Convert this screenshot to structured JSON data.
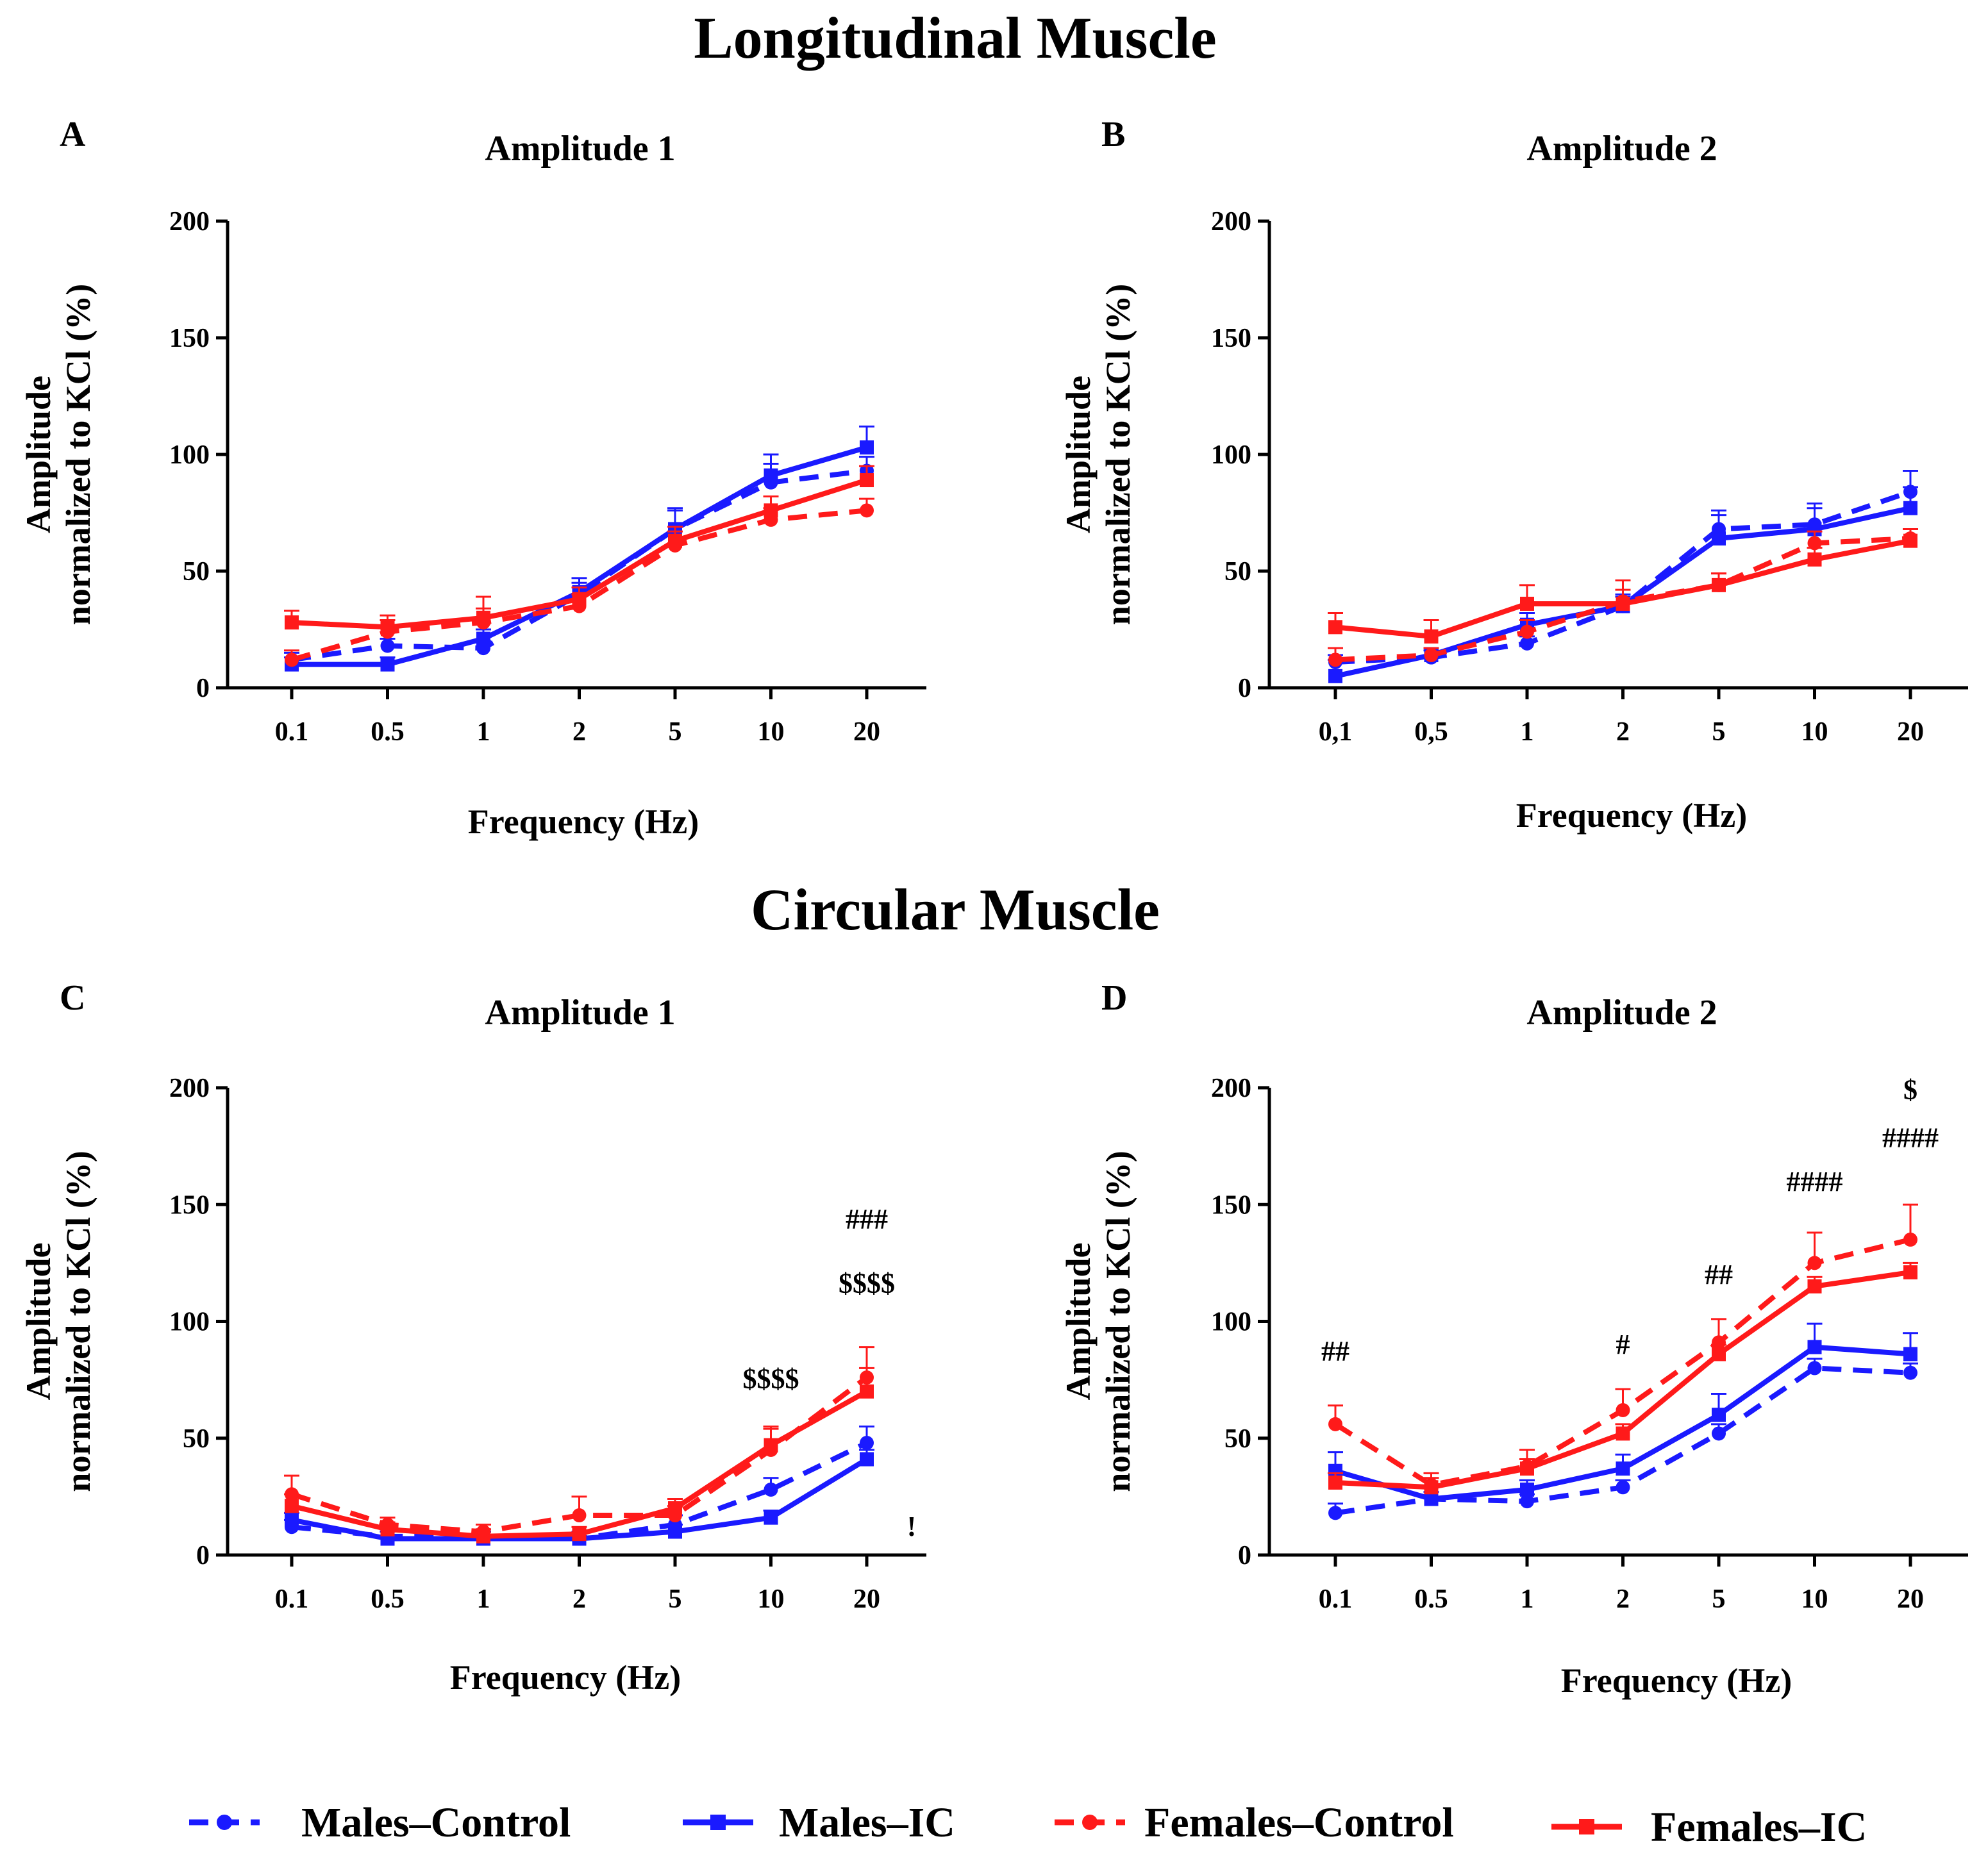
{
  "figure": {
    "section_titles": [
      "Longitudinal Muscle",
      "Circular Muscle"
    ],
    "colors": {
      "blue": "#1a1aff",
      "red": "#ff1a1a",
      "axis": "#000000"
    },
    "legend": [
      {
        "label": "Males–Control",
        "color": "#1a1aff",
        "style": "dashed",
        "marker": "circle"
      },
      {
        "label": "Males–IC",
        "color": "#1a1aff",
        "style": "solid",
        "marker": "square"
      },
      {
        "label": "Females–Control",
        "color": "#ff1a1a",
        "style": "dashed",
        "marker": "circle"
      },
      {
        "label": "Females–IC",
        "color": "#ff1a1a",
        "style": "solid",
        "marker": "square"
      }
    ]
  },
  "chart_data": [
    {
      "panel": "A",
      "section": "Longitudinal Muscle",
      "type": "line",
      "title": "Amplitude 1",
      "xlabel": "Frequency (Hz)",
      "ylabel": [
        "Amplitude",
        "normalized to KCl (%)"
      ],
      "categories": [
        "0.1",
        "0.5",
        "1",
        "2",
        "5",
        "10",
        "20"
      ],
      "ylim": [
        0,
        200
      ],
      "yticks": [
        0,
        50,
        100,
        150,
        200
      ],
      "series": [
        {
          "name": "Males–Control",
          "values": [
            12,
            18,
            17,
            40,
            68,
            88,
            93
          ],
          "errors": [
            3,
            3,
            3,
            5,
            8,
            8,
            6
          ]
        },
        {
          "name": "Males–IC",
          "values": [
            10,
            10,
            21,
            41,
            68,
            91,
            103
          ],
          "errors": [
            3,
            3,
            4,
            6,
            9,
            9,
            9
          ]
        },
        {
          "name": "Females–Control",
          "values": [
            12,
            24,
            28,
            35,
            61,
            72,
            76
          ],
          "errors": [
            4,
            5,
            6,
            5,
            6,
            5,
            5
          ]
        },
        {
          "name": "Females–IC",
          "values": [
            28,
            26,
            30,
            38,
            63,
            76,
            89
          ],
          "errors": [
            5,
            5,
            9,
            5,
            6,
            6,
            6
          ]
        }
      ],
      "annotations": []
    },
    {
      "panel": "B",
      "section": "Longitudinal Muscle",
      "type": "line",
      "title": "Amplitude 2",
      "xlabel": "Frequency (Hz)",
      "ylabel": [
        "Amplitude",
        "normalized to KCl (%)"
      ],
      "categories": [
        "0,1",
        "0,5",
        "1",
        "2",
        "5",
        "10",
        "20"
      ],
      "ylim": [
        0,
        200
      ],
      "yticks": [
        0,
        50,
        100,
        150,
        200
      ],
      "series": [
        {
          "name": "Males–Control",
          "values": [
            11,
            13,
            19,
            35,
            68,
            70,
            84
          ],
          "errors": [
            3,
            3,
            3,
            4,
            8,
            9,
            9
          ]
        },
        {
          "name": "Males–IC",
          "values": [
            5,
            14,
            27,
            35,
            64,
            68,
            77
          ],
          "errors": [
            7,
            3,
            5,
            5,
            10,
            9,
            9
          ]
        },
        {
          "name": "Females–Control",
          "values": [
            12,
            14,
            24,
            37,
            44,
            62,
            64
          ],
          "errors": [
            5,
            3,
            5,
            5,
            5,
            5,
            4
          ]
        },
        {
          "name": "Females–IC",
          "values": [
            26,
            22,
            36,
            36,
            44,
            55,
            63
          ],
          "errors": [
            6,
            7,
            8,
            10,
            5,
            5,
            5
          ]
        }
      ],
      "annotations": []
    },
    {
      "panel": "C",
      "section": "Circular Muscle",
      "type": "line",
      "title": "Amplitude 1",
      "xlabel": "Frequency (Hz)",
      "ylabel": [
        "Amplitude",
        "normalized to KCl (%)"
      ],
      "categories": [
        "0.1",
        "0.5",
        "1",
        "2",
        "5",
        "10",
        "20"
      ],
      "ylim": [
        0,
        200
      ],
      "yticks": [
        0,
        50,
        100,
        150,
        200
      ],
      "series": [
        {
          "name": "Males–Control",
          "values": [
            12,
            8,
            8,
            7,
            13,
            28,
            48
          ],
          "errors": [
            3,
            3,
            3,
            3,
            4,
            5,
            7
          ]
        },
        {
          "name": "Males–IC",
          "values": [
            15,
            7,
            7,
            7,
            10,
            16,
            41
          ],
          "errors": [
            3,
            3,
            3,
            3,
            3,
            3,
            4
          ]
        },
        {
          "name": "Females–Control",
          "values": [
            26,
            13,
            10,
            17,
            17,
            45,
            76
          ],
          "errors": [
            8,
            3,
            3,
            8,
            4,
            9,
            13
          ]
        },
        {
          "name": "Females–IC",
          "values": [
            21,
            11,
            8,
            9,
            20,
            47,
            70
          ],
          "errors": [
            5,
            3,
            3,
            3,
            4,
            8,
            10
          ]
        }
      ],
      "annotations": [
        {
          "text": "$$$$",
          "category": "10"
        },
        {
          "text": "###",
          "category": "20"
        },
        {
          "text": "$$$$",
          "category": "20"
        },
        {
          "text": "!",
          "category": "20"
        }
      ]
    },
    {
      "panel": "D",
      "section": "Circular Muscle",
      "type": "line",
      "title": "Amplitude 2",
      "xlabel": "Frequency (Hz)",
      "ylabel": [
        "Amplitude",
        "normalized to KCl (%)"
      ],
      "categories": [
        "0.1",
        "0.5",
        "1",
        "2",
        "5",
        "10",
        "20"
      ],
      "ylim": [
        0,
        200
      ],
      "yticks": [
        0,
        50,
        100,
        150,
        200
      ],
      "series": [
        {
          "name": "Males–Control",
          "values": [
            18,
            24,
            23,
            29,
            52,
            80,
            78
          ],
          "errors": [
            4,
            3,
            3,
            3,
            4,
            4,
            4
          ]
        },
        {
          "name": "Males–IC",
          "values": [
            36,
            24,
            28,
            37,
            60,
            89,
            86
          ],
          "errors": [
            8,
            3,
            4,
            6,
            9,
            10,
            9
          ]
        },
        {
          "name": "Females–Control",
          "values": [
            56,
            30,
            38,
            62,
            91,
            125,
            135
          ],
          "errors": [
            8,
            5,
            7,
            9,
            10,
            13,
            15
          ]
        },
        {
          "name": "Females–IC",
          "values": [
            31,
            29,
            37,
            52,
            86,
            115,
            121
          ],
          "errors": [
            4,
            4,
            4,
            4,
            4,
            4,
            4
          ]
        }
      ],
      "annotations": [
        {
          "text": "##",
          "category": "0.1"
        },
        {
          "text": "#",
          "category": "2"
        },
        {
          "text": "##",
          "category": "5"
        },
        {
          "text": "####",
          "category": "10"
        },
        {
          "text": "$",
          "category": "20"
        },
        {
          "text": "####",
          "category": "20"
        }
      ]
    }
  ]
}
